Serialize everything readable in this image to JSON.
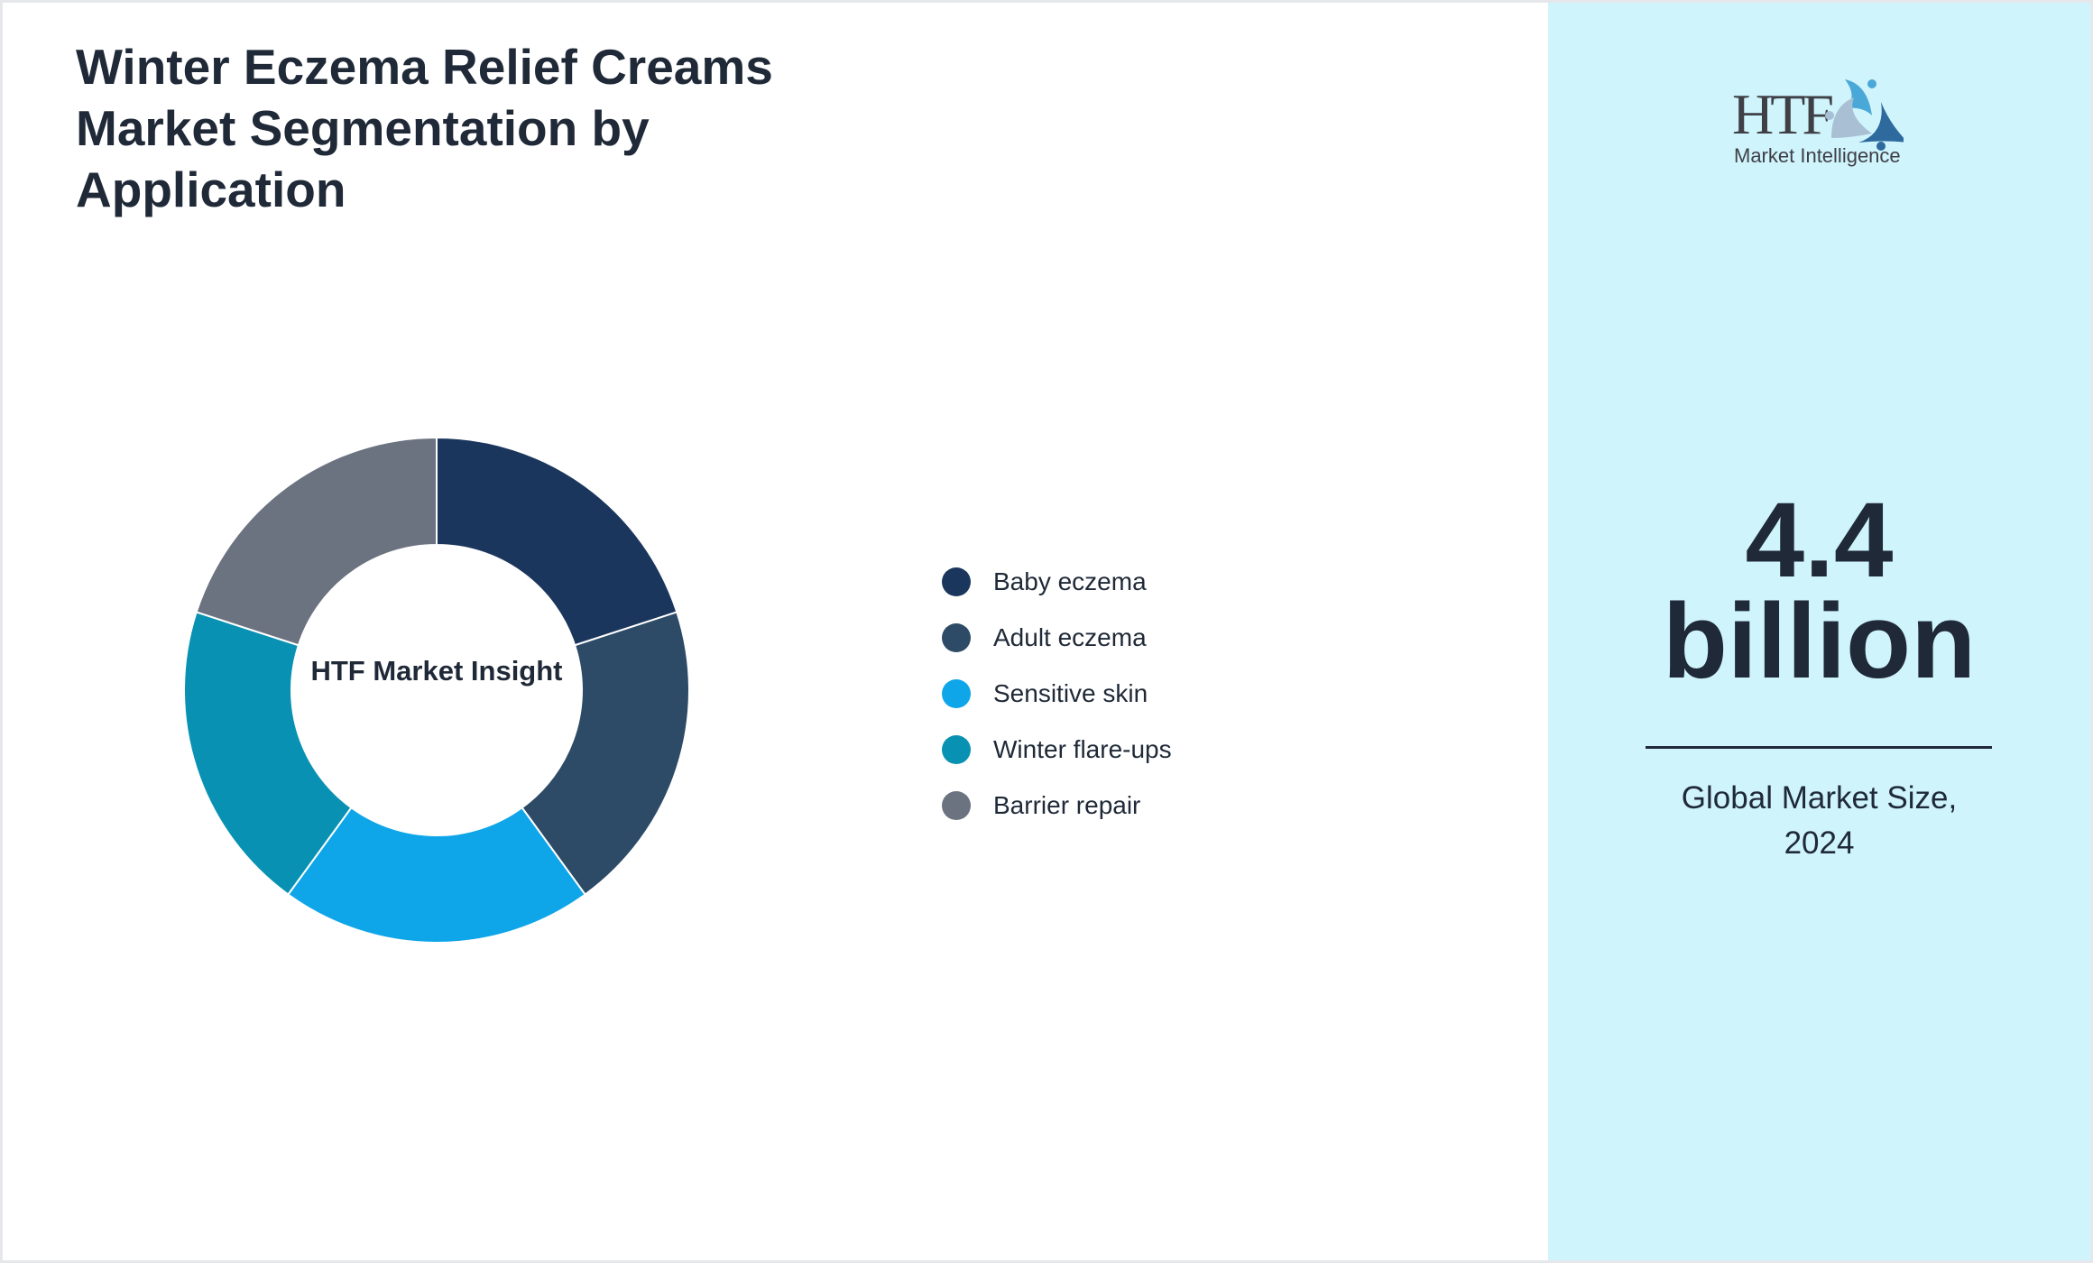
{
  "title": "Winter Eczema Relief Creams Market Segmentation by Application",
  "logo": {
    "text": "HTF",
    "subtitle": "Market Intelligence"
  },
  "market": {
    "value_line1": "4.4",
    "value_line2": "billion",
    "caption_line1": "Global Market Size,",
    "caption_line2": "2024"
  },
  "chart_data": {
    "type": "pie",
    "donut": true,
    "center_label": "HTF Market Insight",
    "categories": [
      "Baby eczema",
      "Adult eczema",
      "Sensitive skin",
      "Winter flare-ups",
      "Barrier repair"
    ],
    "values": [
      20,
      20,
      20,
      20,
      20
    ],
    "colors": [
      "#1b365d",
      "#2d4a66",
      "#0ea5e9",
      "#0891b2",
      "#6b7280"
    ],
    "legend_position": "right"
  }
}
